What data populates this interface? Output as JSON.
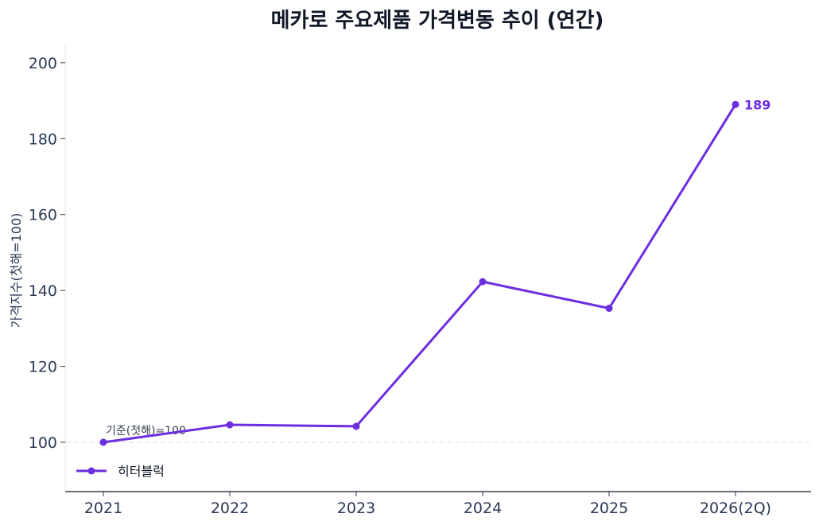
{
  "chart_data": {
    "type": "line",
    "title": "메카로 주요제품 가격변동 추이 (연간)",
    "xlabel": "",
    "ylabel": "가격지수(첫해=100)",
    "categories": [
      "2021",
      "2022",
      "2023",
      "2024",
      "2025",
      "2026(2Q)"
    ],
    "series": [
      {
        "name": "히터블럭",
        "values": [
          100,
          104.6,
          104.2,
          142.3,
          135.3,
          189
        ]
      }
    ],
    "ylim": [
      87,
      205
    ],
    "yticks": [
      100,
      120,
      140,
      160,
      180,
      200
    ],
    "baseline": {
      "value": 100,
      "label": "기준(첫해)=100",
      "style": "dashed"
    },
    "end_label": "189",
    "legend_position": "lower-left",
    "grid": false,
    "colors": {
      "series": "#6D2EE0",
      "axis": "#111827",
      "baseline": "#e2e2e2"
    }
  }
}
